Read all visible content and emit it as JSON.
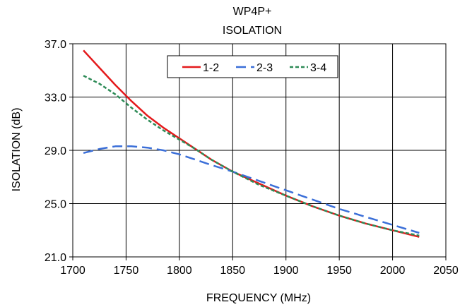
{
  "chart_data": {
    "type": "line",
    "title": "WP4P+",
    "subtitle": "ISOLATION",
    "xlabel": "FREQUENCY (MHz)",
    "ylabel": "ISOLATION (dB)",
    "xlim": [
      1700,
      2050
    ],
    "ylim": [
      21.0,
      37.0
    ],
    "xticks": [
      1700,
      1750,
      1800,
      1850,
      1900,
      1950,
      2000,
      2050
    ],
    "yticks": [
      21.0,
      25.0,
      29.0,
      33.0,
      37.0
    ],
    "xtick_labels": [
      "1700",
      "1750",
      "1800",
      "1850",
      "1900",
      "1950",
      "2000",
      "2050"
    ],
    "ytick_labels": [
      "21.0",
      "25.0",
      "29.0",
      "33.0",
      "37.0"
    ],
    "grid": true,
    "legend_position": "top-center",
    "series": [
      {
        "name": "1-2",
        "color": "#e41a1c",
        "style": "solid",
        "x": [
          1710,
          1725,
          1740,
          1755,
          1770,
          1785,
          1800,
          1815,
          1830,
          1850,
          1875,
          1900,
          1925,
          1950,
          1975,
          2000,
          2025
        ],
        "y": [
          36.5,
          35.2,
          33.9,
          32.7,
          31.6,
          30.7,
          29.9,
          29.1,
          28.3,
          27.4,
          26.5,
          25.6,
          24.8,
          24.1,
          23.5,
          23.0,
          22.5
        ]
      },
      {
        "name": "2-3",
        "color": "#3b6fd8",
        "style": "dashed",
        "x": [
          1710,
          1725,
          1740,
          1755,
          1770,
          1785,
          1800,
          1815,
          1830,
          1850,
          1875,
          1900,
          1925,
          1950,
          1975,
          2000,
          2025
        ],
        "y": [
          28.8,
          29.1,
          29.3,
          29.3,
          29.2,
          29.0,
          28.7,
          28.3,
          27.9,
          27.4,
          26.7,
          26.0,
          25.3,
          24.6,
          24.0,
          23.4,
          22.8
        ]
      },
      {
        "name": "3-4",
        "color": "#2e8b57",
        "style": "dotted",
        "x": [
          1710,
          1725,
          1740,
          1755,
          1770,
          1785,
          1800,
          1815,
          1830,
          1850,
          1875,
          1900,
          1925,
          1950,
          1975,
          2000,
          2025
        ],
        "y": [
          34.6,
          34.0,
          33.2,
          32.2,
          31.3,
          30.5,
          29.8,
          29.1,
          28.3,
          27.4,
          26.4,
          25.6,
          24.8,
          24.1,
          23.5,
          23.0,
          22.6
        ]
      }
    ]
  }
}
